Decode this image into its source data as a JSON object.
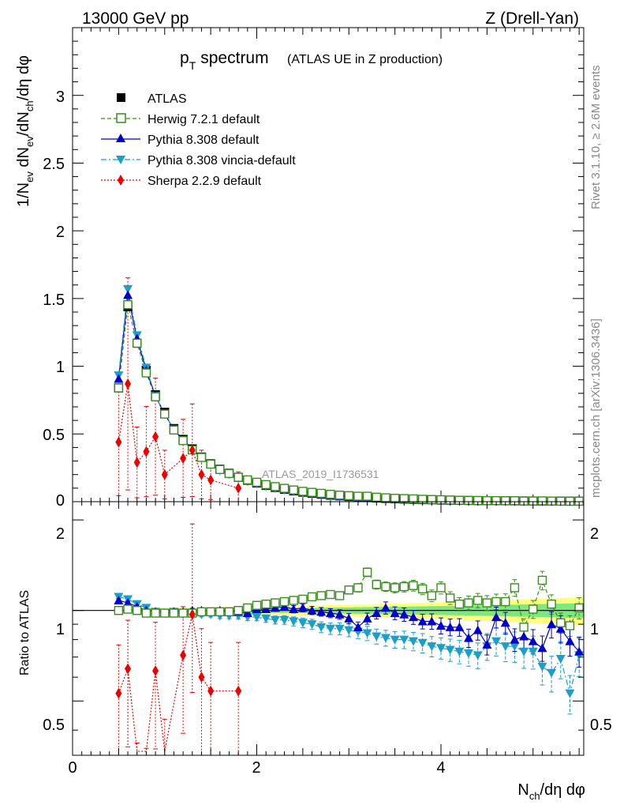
{
  "header": {
    "left": "13000 GeV pp",
    "right": "Z (Drell-Yan)"
  },
  "side": {
    "rivet": "Rivet 3.1.10, ≥ 2.6M events",
    "mcplots": "mcplots.cern.ch [arXiv:1306.3436]"
  },
  "chart_data": {
    "type": "line",
    "title_main": "p",
    "title_sub": "T",
    "title_word": "spectrum",
    "title_extra": "(ATLAS UE in Z production)",
    "watermark": "ATLAS_2019_I1736531",
    "ylabel_parts": [
      "1/N",
      "ev",
      " dN",
      "ev",
      "/dN",
      "ch",
      "/dη dφ"
    ],
    "ratio_ylabel": "Ratio to ATLAS",
    "xlabel_parts": [
      "N",
      "ch",
      "/dη dφ"
    ],
    "xlim": [
      0,
      5.55
    ],
    "ylim": [
      0,
      3.5
    ],
    "ratio_ylim": [
      0.33,
      2.3
    ],
    "x_ticks": [
      "0",
      "2",
      "4"
    ],
    "y_ticks": [
      "0",
      "0.5",
      "1",
      "1.5",
      "2",
      "2.5",
      "3"
    ],
    "ratio_ticks": [
      "0.5",
      "1",
      "2"
    ],
    "colors": {
      "atlas": "#000000",
      "herwig": "#3a8c1e",
      "pythia": "#0000cc",
      "vincia": "#1a9fc8",
      "sherpa": "#ee0000",
      "band_inner": "#7de87d",
      "band_outer": "#ffff80"
    },
    "legend": [
      {
        "key": "atlas",
        "label": "ATLAS"
      },
      {
        "key": "herwig",
        "label": "Herwig 7.2.1 default"
      },
      {
        "key": "pythia",
        "label": "Pythia 8.308 default"
      },
      {
        "key": "vincia",
        "label": "Pythia 8.308 vincia-default"
      },
      {
        "key": "sherpa",
        "label": "Sherpa 2.2.9 default"
      }
    ],
    "x": [
      0.5,
      0.6,
      0.7,
      0.8,
      0.9,
      1.0,
      1.1,
      1.2,
      1.3,
      1.4,
      1.5,
      1.6,
      1.7,
      1.8,
      1.9,
      2.0,
      2.1,
      2.2,
      2.3,
      2.4,
      2.5,
      2.6,
      2.7,
      2.8,
      2.9,
      3.0,
      3.1,
      3.2,
      3.3,
      3.4,
      3.5,
      3.6,
      3.7,
      3.8,
      3.9,
      4.0,
      4.1,
      4.2,
      4.3,
      4.4,
      4.5,
      4.6,
      4.7,
      4.8,
      4.9,
      5.0,
      5.1,
      5.2,
      5.3,
      5.4,
      5.5
    ],
    "atlas_values": [
      0.84,
      1.44,
      1.17,
      0.97,
      0.79,
      0.66,
      0.54,
      0.46,
      0.39,
      0.33,
      0.28,
      0.24,
      0.21,
      0.18,
      0.158,
      0.138,
      0.12,
      0.105,
      0.092,
      0.08,
      0.07,
      0.062,
      0.055,
      0.048,
      0.043,
      0.038,
      0.034,
      0.03,
      0.027,
      0.024,
      0.021,
      0.019,
      0.017,
      0.015,
      0.014,
      0.012,
      0.011,
      0.01,
      0.009,
      0.008,
      0.0075,
      0.007,
      0.0065,
      0.006,
      0.0055,
      0.005,
      0.0047,
      0.0044,
      0.004,
      0.0037,
      0.0035
    ],
    "herwig_ratio": [
      1.0,
      1.01,
      1.0,
      0.98,
      0.98,
      0.98,
      0.98,
      0.98,
      0.98,
      0.99,
      0.99,
      0.99,
      0.99,
      1.0,
      1.02,
      1.04,
      1.05,
      1.06,
      1.07,
      1.08,
      1.09,
      1.11,
      1.12,
      1.13,
      1.12,
      1.17,
      1.19,
      1.34,
      1.22,
      1.2,
      1.19,
      1.2,
      1.21,
      1.18,
      1.12,
      1.19,
      1.1,
      1.05,
      1.06,
      1.08,
      1.06,
      1.07,
      1.07,
      1.19,
      0.88,
      1.01,
      1.26,
      1.05,
      0.91,
      0.89,
      1.02
    ],
    "pythia_ratio": [
      1.08,
      1.06,
      1.03,
      1.0,
      0.99,
      0.98,
      0.99,
      0.99,
      1.0,
      1.0,
      0.99,
      1.0,
      0.99,
      0.99,
      0.98,
      1.01,
      1.01,
      1.02,
      1.03,
      1.01,
      1.02,
      1.0,
      0.99,
      0.98,
      0.97,
      0.94,
      0.88,
      0.94,
      0.98,
      1.02,
      0.98,
      0.97,
      0.95,
      0.92,
      0.92,
      0.89,
      0.88,
      0.88,
      0.81,
      0.86,
      0.77,
      0.95,
      0.91,
      0.8,
      0.82,
      0.79,
      0.75,
      0.9,
      0.87,
      0.79,
      0.73
    ],
    "vincia_ratio": [
      1.11,
      1.09,
      1.05,
      1.02,
      0.99,
      0.98,
      0.99,
      0.97,
      0.98,
      0.97,
      0.97,
      0.96,
      0.96,
      0.96,
      0.95,
      0.95,
      0.94,
      0.93,
      0.93,
      0.92,
      0.91,
      0.9,
      0.88,
      0.87,
      0.87,
      0.86,
      0.85,
      0.84,
      0.82,
      0.81,
      0.8,
      0.8,
      0.79,
      0.78,
      0.76,
      0.75,
      0.74,
      0.73,
      0.72,
      0.71,
      0.76,
      0.79,
      0.76,
      0.76,
      0.73,
      0.73,
      0.65,
      0.62,
      0.69,
      0.53,
      0.71
    ],
    "sherpa": {
      "x": [
        0.5,
        0.6,
        0.7,
        0.8,
        0.9,
        1.0,
        1.2,
        1.3,
        1.4,
        1.5,
        1.8
      ],
      "values": [
        0.44,
        0.87,
        0.29,
        0.37,
        0.48,
        0.2,
        0.32,
        0.38,
        0.2,
        0.16,
        0.1
      ],
      "ratio": [
        0.53,
        0.64,
        0.25,
        0.24,
        0.63,
        0.3,
        0.71,
        0.97,
        0.6,
        0.54,
        0.54
      ]
    }
  }
}
